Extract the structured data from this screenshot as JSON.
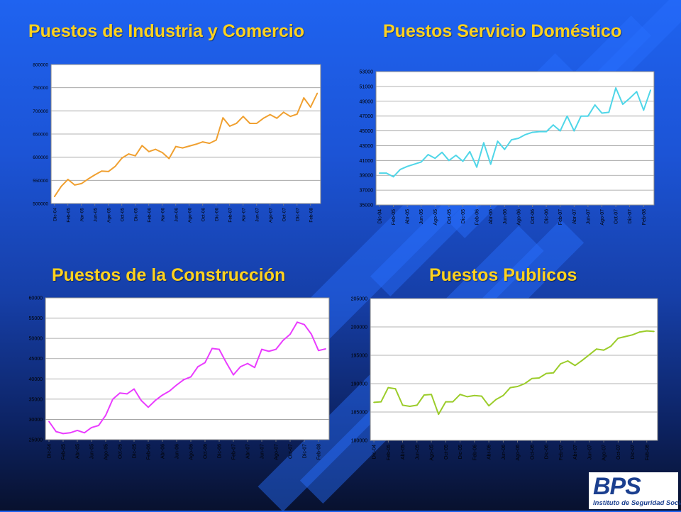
{
  "chart_data": [
    {
      "type": "line",
      "title": "Puestos de Industria y Comercio",
      "color": "#f0a030",
      "categories": [
        "Dic-04",
        "Ene-05",
        "Feb-05",
        "Mar-05",
        "Abr-05",
        "May-05",
        "Jun-05",
        "Jul-05",
        "Ago-05",
        "Sep-05",
        "Oct-05",
        "Nov-05",
        "Dic-05",
        "Ene-06",
        "Feb-06",
        "Mar-06",
        "Abr-06",
        "May-06",
        "Jun-06",
        "Jul-06",
        "Ago-06",
        "Sep-06",
        "Oct-06",
        "Nov-06",
        "Dic-06",
        "Ene-07",
        "Feb-07",
        "Mar-07",
        "Abr-07",
        "May-07",
        "Jun-07",
        "Jul-07",
        "Ago-07",
        "Sep-07",
        "Oct-07",
        "Nov-07",
        "Dic-07",
        "Ene-08",
        "Feb-08",
        "Mar-08"
      ],
      "tick_labels": [
        "Dic-04",
        "Feb-05",
        "Abr-05",
        "Jun-05",
        "Ago-05",
        "Oct-05",
        "Dic-05",
        "Feb-06",
        "Abr-06",
        "Jun-06",
        "Ago-06",
        "Oct-06",
        "Dic-06",
        "Feb-07",
        "Abr-07",
        "Jun-07",
        "Ago-07",
        "Oct-07",
        "Dic-07",
        "Feb-08"
      ],
      "yticks": [
        "500000",
        "550000",
        "600000",
        "650000",
        "700000",
        "750000",
        "800000"
      ],
      "ylim": [
        500000,
        800000
      ],
      "values": [
        515000,
        537000,
        552000,
        540000,
        543000,
        553000,
        562000,
        570000,
        569000,
        580000,
        598000,
        607000,
        603000,
        625000,
        612000,
        617000,
        610000,
        597000,
        623000,
        620000,
        624000,
        628000,
        633000,
        630000,
        637000,
        685000,
        667000,
        673000,
        688000,
        673000,
        673000,
        684000,
        692000,
        684000,
        697000,
        688000,
        693000,
        728000,
        708000,
        738000
      ]
    },
    {
      "type": "line",
      "title": "Puestos Servicio Doméstico",
      "color": "#4fd6e8",
      "categories": [
        "Dic-04",
        "Ene-05",
        "Feb-05",
        "Mar-05",
        "Abr-05",
        "May-05",
        "Jun-05",
        "Jul-05",
        "Ago-05",
        "Sep-05",
        "Oct-05",
        "Nov-05",
        "Dic-05",
        "Ene-06",
        "Feb-06",
        "Mar-06",
        "Abr-06",
        "May-06",
        "Jun-06",
        "Jul-06",
        "Ago-06",
        "Sep-06",
        "Oct-06",
        "Nov-06",
        "Dic-06",
        "Ene-07",
        "Feb-07",
        "Mar-07",
        "Abr-07",
        "May-07",
        "Jun-07",
        "Jul-07",
        "Ago-07",
        "Sep-07",
        "Oct-07",
        "Nov-07",
        "Dic-07",
        "Ene-08",
        "Feb-08",
        "Mar-08"
      ],
      "tick_labels": [
        "Dic-04",
        "Feb-05",
        "Abr-05",
        "Jun-05",
        "Ago-05",
        "Oct-05",
        "Dic-05",
        "Feb-06",
        "Abr-06",
        "Jun-06",
        "Ago-06",
        "Oct-06",
        "Dic-06",
        "Feb-07",
        "Abr-07",
        "Jun-07",
        "Ago-07",
        "Oct-07",
        "Dic-07",
        "Feb-08"
      ],
      "yticks": [
        "35000",
        "37000",
        "39000",
        "41000",
        "43000",
        "45000",
        "47000",
        "49000",
        "51000",
        "53000"
      ],
      "ylim": [
        35000,
        53000
      ],
      "values": [
        39300,
        39300,
        38800,
        39800,
        40200,
        40500,
        40800,
        41800,
        41300,
        42100,
        41000,
        41700,
        40900,
        42200,
        40100,
        43400,
        40500,
        43600,
        42500,
        43800,
        44000,
        44500,
        44800,
        44900,
        44900,
        45800,
        45000,
        47000,
        45000,
        47000,
        47000,
        48500,
        47400,
        47500,
        50800,
        48600,
        49400,
        50300,
        47800,
        50500
      ]
    },
    {
      "type": "line",
      "title": "Puestos de la Construcción",
      "color": "#ea3cff",
      "categories": [
        "Dic-04",
        "Ene-05",
        "Feb-05",
        "Mar-05",
        "Abr-05",
        "May-05",
        "Jun-05",
        "Jul-05",
        "Ago-05",
        "Sep-05",
        "Oct-05",
        "Nov-05",
        "Dic-05",
        "Ene-06",
        "Feb-06",
        "Mar-06",
        "Abr-06",
        "May-06",
        "Jun-06",
        "Jul-06",
        "Ago-06",
        "Sep-06",
        "Oct-06",
        "Nov-06",
        "Dic-06",
        "Ene-07",
        "Feb-07",
        "Mar-07",
        "Abr-07",
        "May-07",
        "Jun-07",
        "Jul-07",
        "Ago-07",
        "Sep-07",
        "Oct-07",
        "Nov-07",
        "Dic-07",
        "Ene-08",
        "Feb-08",
        "Mar-08"
      ],
      "tick_labels": [
        "Dic-04",
        "Feb-05",
        "Abr-05",
        "Jun-05",
        "Ago-05",
        "Oct-05",
        "Dic-05",
        "Feb-06",
        "Abr-06",
        "Jun-06",
        "Ago-06",
        "Oct-06",
        "Dic-06",
        "Feb-07",
        "Abr-07",
        "Jun-07",
        "Ago-07",
        "Oct-07",
        "Dic-07",
        "Feb-08"
      ],
      "yticks": [
        "25000",
        "30000",
        "35000",
        "40000",
        "45000",
        "50000",
        "55000",
        "60000"
      ],
      "ylim": [
        25000,
        60000
      ],
      "values": [
        29500,
        27000,
        26500,
        26700,
        27300,
        26700,
        28000,
        28500,
        31000,
        35000,
        36500,
        36300,
        37500,
        34700,
        33000,
        34700,
        36000,
        37000,
        38500,
        39800,
        40500,
        43000,
        44000,
        47500,
        47300,
        44000,
        41000,
        43000,
        43800,
        42800,
        47300,
        46800,
        47300,
        49500,
        51000,
        54000,
        53400,
        51000,
        47000,
        47400
      ]
    },
    {
      "type": "line",
      "title": "Puestos Publicos",
      "color": "#9bcc2a",
      "categories": [
        "Dic-04",
        "Ene-05",
        "Feb-05",
        "Mar-05",
        "Abr-05",
        "May-05",
        "Jun-05",
        "Jul-05",
        "Ago-05",
        "Sep-05",
        "Oct-05",
        "Nov-05",
        "Dic-05",
        "Ene-06",
        "Feb-06",
        "Mar-06",
        "Abr-06",
        "May-06",
        "Jun-06",
        "Jul-06",
        "Ago-06",
        "Sep-06",
        "Oct-06",
        "Nov-06",
        "Dic-06",
        "Ene-07",
        "Feb-07",
        "Mar-07",
        "Abr-07",
        "May-07",
        "Jun-07",
        "Jul-07",
        "Ago-07",
        "Sep-07",
        "Oct-07",
        "Nov-07",
        "Dic-07",
        "Ene-08",
        "Feb-08",
        "Mar-08"
      ],
      "tick_labels": [
        "Dic-04",
        "Feb-05",
        "Abr-05",
        "Jun-05",
        "Ago-05",
        "Oct-05",
        "Dic-05",
        "Feb-06",
        "Abr-06",
        "Jun-06",
        "Ago-06",
        "Oct-06",
        "Dic-06",
        "Feb-07",
        "Abr-07",
        "Jun-07",
        "Ago-07",
        "Oct-07",
        "Dic-07",
        "Feb-08"
      ],
      "yticks": [
        "180000",
        "185000",
        "190000",
        "195000",
        "200000",
        "205000"
      ],
      "ylim": [
        180000,
        205000
      ],
      "values": [
        186700,
        186800,
        189300,
        189100,
        186200,
        186000,
        186200,
        188000,
        188100,
        184600,
        186800,
        186800,
        188100,
        187700,
        187900,
        187800,
        186100,
        187200,
        187900,
        189300,
        189500,
        190000,
        190900,
        191000,
        191800,
        191900,
        193500,
        194000,
        193200,
        194100,
        195100,
        196100,
        195900,
        196600,
        198000,
        198300,
        198600,
        199100,
        199300,
        199200
      ]
    }
  ],
  "logo": {
    "name": "bps-logo",
    "mark": "BPS",
    "subtitle": "Instituto de Seguridad Social"
  }
}
